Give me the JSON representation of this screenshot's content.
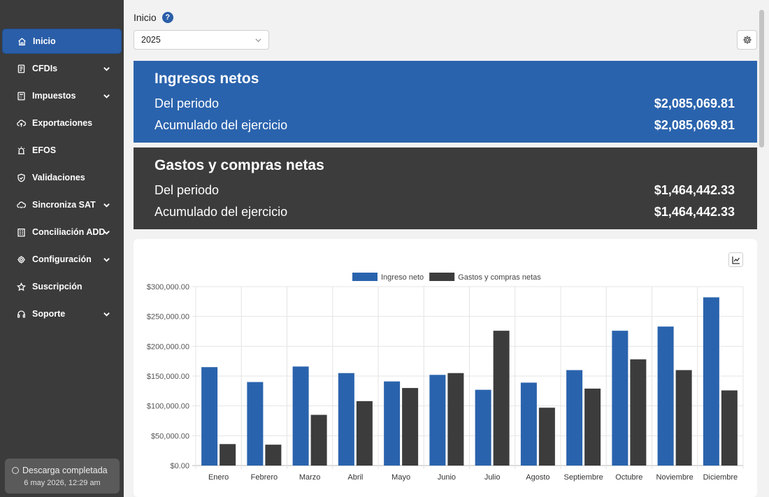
{
  "sidebar": {
    "items": [
      {
        "label": "Inicio",
        "icon": "home-icon",
        "active": true,
        "chevron": false
      },
      {
        "label": "CFDIs",
        "icon": "document-icon",
        "active": false,
        "chevron": true
      },
      {
        "label": "Impuestos",
        "icon": "calculator-icon",
        "active": false,
        "chevron": true
      },
      {
        "label": "Exportaciones",
        "icon": "cloud-upload-icon",
        "active": false,
        "chevron": false
      },
      {
        "label": "EFOS",
        "icon": "alert-icon",
        "active": false,
        "chevron": false
      },
      {
        "label": "Validaciones",
        "icon": "shield-check-icon",
        "active": false,
        "chevron": false
      },
      {
        "label": "Sincroniza SAT",
        "icon": "cloud-sync-icon",
        "active": false,
        "chevron": true
      },
      {
        "label": "Conciliación ADD",
        "icon": "building-icon",
        "active": false,
        "chevron": true
      },
      {
        "label": "Configuración",
        "icon": "gear-icon",
        "active": false,
        "chevron": true
      },
      {
        "label": "Suscripción",
        "icon": "star-icon",
        "active": false,
        "chevron": false
      },
      {
        "label": "Soporte",
        "icon": "headset-icon",
        "active": false,
        "chevron": true
      }
    ],
    "download": {
      "status": "Descarga completada",
      "time": "6 may 2026, 12:29 am"
    }
  },
  "header": {
    "title": "Inicio",
    "help": "?",
    "year": "2025"
  },
  "income": {
    "title": "Ingresos netos",
    "period_label": "Del periodo",
    "period_value": "$2,085,069.81",
    "year_label": "Acumulado del ejercicio",
    "year_value": "$2,085,069.81"
  },
  "expense": {
    "title": "Gastos y compras netas",
    "period_label": "Del periodo",
    "period_value": "$1,464,442.33",
    "year_label": "Acumulado del ejercicio",
    "year_value": "$1,464,442.33"
  },
  "colors": {
    "income": "#2a63ad",
    "expense": "#3c3c3c"
  },
  "chart_data": {
    "type": "bar",
    "categories": [
      "Enero",
      "Febrero",
      "Marzo",
      "Abril",
      "Mayo",
      "Junio",
      "Julio",
      "Agosto",
      "Septiembre",
      "Octubre",
      "Noviembre",
      "Diciembre"
    ],
    "series": [
      {
        "name": "Ingreso neto",
        "color": "#2a63ad",
        "values": [
          165000,
          140000,
          166000,
          155000,
          141000,
          152000,
          127000,
          139000,
          160000,
          226000,
          233000,
          282000
        ]
      },
      {
        "name": "Gastos y compras netas",
        "color": "#3c3c3c",
        "values": [
          36000,
          35000,
          85000,
          108000,
          130000,
          155000,
          226000,
          97000,
          129000,
          178000,
          160000,
          126000
        ]
      }
    ],
    "yticks": [
      "$0.00",
      "$50,000.00",
      "$100,000.00",
      "$150,000.00",
      "$200,000.00",
      "$250,000.00",
      "$300,000.00"
    ],
    "ylim": [
      0,
      300000
    ],
    "legend": "top",
    "grid": true
  }
}
